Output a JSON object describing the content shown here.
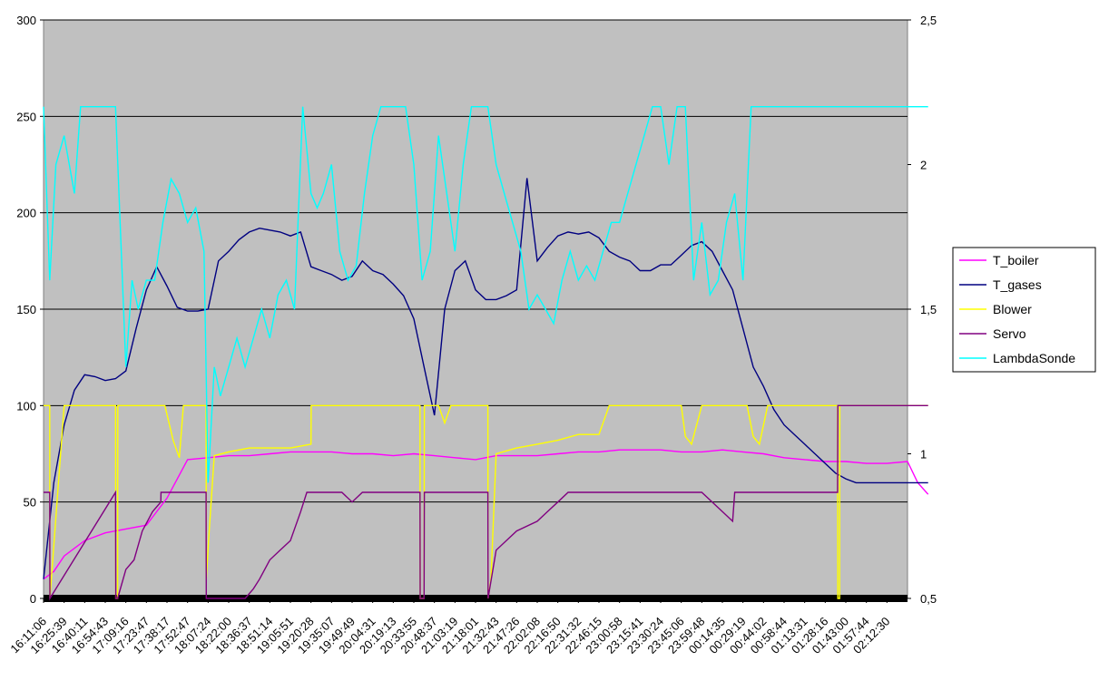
{
  "chart_data": {
    "type": "line",
    "title": "",
    "xlabel": "",
    "ylabel": "",
    "plot_background": "#c0c0c0",
    "ylim": [
      0,
      300
    ],
    "y2lim": [
      0.5,
      2.5
    ],
    "yticks": [
      0,
      50,
      100,
      150,
      200,
      250,
      300
    ],
    "y2ticks_labels": [
      "0,5",
      "1",
      "1,5",
      "2",
      "2,5"
    ],
    "y2ticks": [
      0.5,
      1,
      1.5,
      2,
      2.5
    ],
    "grid": true,
    "legend_position": "right",
    "x_labels": [
      "16:11:06",
      "16:25:39",
      "16:40:11",
      "16:54:43",
      "17:09:16",
      "17:23:47",
      "17:38:17",
      "17:52:47",
      "18:07:24",
      "18:22:00",
      "18:36:37",
      "18:51:14",
      "19:05:51",
      "19:20:28",
      "19:35:07",
      "19:49:49",
      "20:04:31",
      "20:19:13",
      "20:33:55",
      "20:48:37",
      "21:03:19",
      "21:18:01",
      "21:32:43",
      "21:47:26",
      "22:02:08",
      "22:16:50",
      "22:31:32",
      "22:46:15",
      "23:00:58",
      "23:15:41",
      "23:30:24",
      "23:45:06",
      "23:59:48",
      "00:14:35",
      "00:29:19",
      "00:44:02",
      "00:58:44",
      "01:13:31",
      "01:28:16",
      "01:43:00",
      "01:57:44",
      "02:12:30"
    ],
    "series": [
      {
        "name": "T_boiler",
        "color": "#ff00ff",
        "axis": "left",
        "x": [
          0,
          0.5,
          1,
          2,
          3,
          4,
          5,
          6,
          7,
          8,
          9,
          10,
          11,
          12,
          13,
          14,
          15,
          16,
          17,
          18,
          19,
          20,
          21,
          22,
          23,
          24,
          25,
          26,
          27,
          28,
          29,
          30,
          31,
          32,
          33,
          34,
          35,
          36,
          37,
          38,
          39,
          40,
          41,
          42,
          42.5,
          43
        ],
        "y": [
          10,
          14,
          22,
          30,
          34,
          36,
          38,
          52,
          72,
          73,
          74,
          74,
          75,
          76,
          76,
          76,
          75,
          75,
          74,
          75,
          74,
          73,
          72,
          74,
          74,
          74,
          75,
          76,
          76,
          77,
          77,
          77,
          76,
          76,
          77,
          76,
          75,
          73,
          72,
          71,
          71,
          70,
          70,
          71,
          60,
          54
        ]
      },
      {
        "name": "T_gases",
        "color": "#000080",
        "axis": "left",
        "x": [
          0,
          0.5,
          1,
          1.5,
          2,
          2.5,
          3,
          3.5,
          4,
          4.5,
          5,
          5.5,
          6,
          6.5,
          7,
          7.5,
          8,
          8.5,
          9,
          9.5,
          10,
          10.5,
          11,
          11.5,
          12,
          12.5,
          13,
          13.5,
          14,
          14.5,
          15,
          15.5,
          16,
          16.5,
          17,
          17.5,
          18,
          18.5,
          19,
          19.5,
          20,
          20.5,
          21,
          21.5,
          22,
          22.5,
          23,
          23.5,
          24,
          24.5,
          25,
          25.5,
          26,
          26.5,
          27,
          27.5,
          28,
          28.5,
          29,
          29.5,
          30,
          30.5,
          31,
          31.5,
          32,
          32.5,
          33,
          33.5,
          34,
          34.5,
          35,
          35.5,
          36,
          36.5,
          37,
          37.5,
          38,
          38.5,
          39,
          39.5,
          40,
          40.5,
          41,
          41.5,
          42,
          42.5,
          43
        ],
        "y": [
          10,
          60,
          90,
          108,
          116,
          115,
          113,
          114,
          118,
          140,
          160,
          172,
          162,
          151,
          149,
          149,
          150,
          175,
          180,
          186,
          190,
          192,
          191,
          190,
          188,
          190,
          172,
          170,
          168,
          165,
          167,
          175,
          170,
          168,
          163,
          157,
          145,
          120,
          95,
          150,
          170,
          175,
          160,
          155,
          155,
          157,
          160,
          218,
          175,
          182,
          188,
          190,
          189,
          190,
          187,
          180,
          177,
          175,
          170,
          170,
          173,
          173,
          178,
          183,
          185,
          180,
          170,
          160,
          140,
          120,
          110,
          98,
          90,
          85,
          80,
          75,
          70,
          65,
          62,
          60,
          60,
          60,
          60,
          60,
          60,
          60,
          60
        ]
      },
      {
        "name": "Blower",
        "color": "#ffff00",
        "axis": "left",
        "x": [
          0,
          0.3,
          0.31,
          1,
          3.5,
          3.51,
          3.6,
          3.61,
          5.9,
          6.3,
          6.6,
          6.8,
          7.9,
          7.91,
          8.05,
          8.3,
          9,
          10,
          11,
          12,
          13,
          13.01,
          18.3,
          18.31,
          18.5,
          18.51,
          19.2,
          19.5,
          19.8,
          21.6,
          21.61,
          21.75,
          22,
          23,
          24,
          25,
          26,
          27,
          27.5,
          27.51,
          28,
          31,
          31.2,
          31.5,
          32,
          32.2,
          32.4,
          34.2,
          34.5,
          34.8,
          35.2,
          38.6,
          38.61,
          38.7,
          38.71,
          43
        ],
        "y": [
          100,
          100,
          0,
          100,
          100,
          0,
          0,
          100,
          100,
          82,
          73,
          100,
          100,
          10,
          35,
          74,
          76,
          78,
          78,
          78,
          80,
          100,
          100,
          0,
          0,
          100,
          100,
          91,
          100,
          100,
          0,
          10,
          75,
          78,
          80,
          82,
          85,
          85,
          100,
          100,
          100,
          100,
          84,
          80,
          100,
          100,
          100,
          100,
          84,
          80,
          100,
          100,
          0,
          0,
          100,
          100
        ]
      },
      {
        "name": "Servo",
        "color": "#800080",
        "axis": "left",
        "x": [
          0,
          0.3,
          0.31,
          3.5,
          3.51,
          3.6,
          4,
          4.4,
          4.8,
          5.3,
          5.7,
          5.71,
          7.9,
          7.91,
          8.1,
          9.8,
          10.2,
          10.5,
          11,
          11.5,
          12,
          12.5,
          12.8,
          12.81,
          14.5,
          15,
          15.5,
          18.3,
          18.31,
          18.5,
          18.51,
          21.6,
          21.61,
          22,
          23,
          24,
          24.5,
          25,
          25.5,
          25.51,
          29,
          30,
          31,
          32,
          33,
          33.5,
          33.6,
          34,
          35,
          38.6,
          38.61,
          43
        ],
        "y": [
          55,
          55,
          0,
          55,
          0,
          0,
          15,
          20,
          35,
          45,
          50,
          55,
          55,
          0,
          0,
          0,
          5,
          10,
          20,
          25,
          30,
          45,
          55,
          55,
          55,
          50,
          55,
          55,
          0,
          0,
          55,
          55,
          0,
          25,
          35,
          40,
          45,
          50,
          55,
          55,
          55,
          55,
          55,
          55,
          45,
          40,
          55,
          55,
          55,
          55,
          100,
          100
        ]
      },
      {
        "name": "LambdaSonde",
        "color": "#00ffff",
        "axis": "right",
        "x": [
          0,
          0.3,
          0.6,
          1,
          1.5,
          1.8,
          2.2,
          2.6,
          3,
          3.5,
          4,
          4.3,
          4.6,
          5,
          5.4,
          5.8,
          6.2,
          6.6,
          7,
          7.4,
          7.8,
          8,
          8.3,
          8.6,
          9,
          9.4,
          9.8,
          10.2,
          10.6,
          11,
          11.4,
          11.8,
          12.2,
          12.6,
          13,
          13.3,
          13.6,
          14,
          14.4,
          14.8,
          15.2,
          15.6,
          16,
          16.4,
          16.8,
          17.2,
          17.6,
          18,
          18.4,
          18.8,
          19.2,
          19.6,
          20,
          20.4,
          20.8,
          21.2,
          21.6,
          22,
          22.4,
          22.8,
          23.2,
          23.6,
          24,
          24.4,
          24.8,
          25.2,
          25.6,
          26,
          26.4,
          26.8,
          27.2,
          27.6,
          28,
          28.4,
          28.8,
          29.2,
          29.6,
          30,
          30.4,
          30.8,
          31.2,
          31.6,
          32,
          32.4,
          32.8,
          33.2,
          33.6,
          34,
          34.4,
          34.8,
          35.2,
          35.6,
          36,
          43
        ],
        "y": [
          2.2,
          1.6,
          2.0,
          2.1,
          1.9,
          2.2,
          2.2,
          2.2,
          2.2,
          2.2,
          1.3,
          1.6,
          1.5,
          1.6,
          1.6,
          1.8,
          1.95,
          1.9,
          1.8,
          1.85,
          1.7,
          0.9,
          1.3,
          1.2,
          1.3,
          1.4,
          1.3,
          1.4,
          1.5,
          1.4,
          1.55,
          1.6,
          1.5,
          2.2,
          1.9,
          1.85,
          1.9,
          2.0,
          1.7,
          1.6,
          1.65,
          1.9,
          2.1,
          2.2,
          2.2,
          2.2,
          2.2,
          2.0,
          1.6,
          1.7,
          2.1,
          1.9,
          1.7,
          2.0,
          2.2,
          2.2,
          2.2,
          2.0,
          1.9,
          1.8,
          1.7,
          1.5,
          1.55,
          1.5,
          1.45,
          1.6,
          1.7,
          1.6,
          1.65,
          1.6,
          1.7,
          1.8,
          1.8,
          1.9,
          2.0,
          2.1,
          2.2,
          2.2,
          2.0,
          2.2,
          2.2,
          1.6,
          1.8,
          1.55,
          1.6,
          1.8,
          1.9,
          1.6,
          2.2,
          2.2,
          2.2,
          2.2,
          2.2,
          2.2
        ]
      }
    ]
  }
}
